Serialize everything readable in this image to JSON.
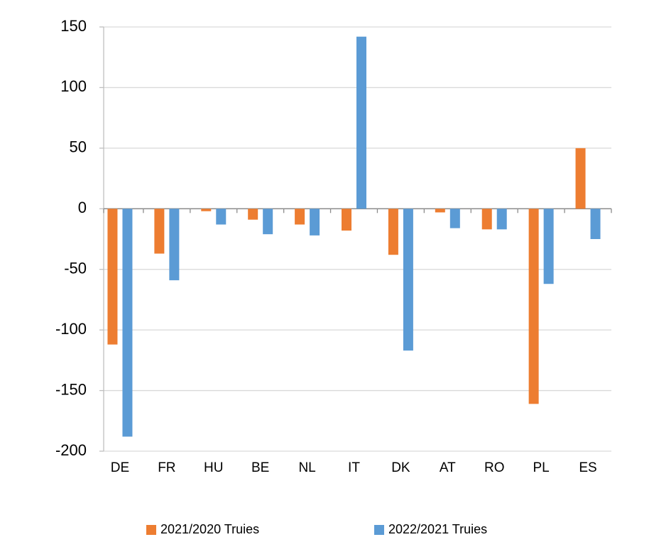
{
  "chart_data": {
    "type": "bar",
    "categories": [
      "DE",
      "FR",
      "HU",
      "BE",
      "NL",
      "IT",
      "DK",
      "AT",
      "RO",
      "PL",
      "ES"
    ],
    "series": [
      {
        "name": "2021/2020 Truies",
        "color": "#ed7d31",
        "values": [
          -112,
          -37,
          -2,
          -9,
          -13,
          -18,
          -38,
          -3,
          -17,
          -161,
          50
        ]
      },
      {
        "name": "2022/2021 Truies",
        "color": "#5b9bd5",
        "values": [
          -188,
          -59,
          -13,
          -21,
          -22,
          142,
          -117,
          -16,
          -17,
          -62,
          -25
        ]
      }
    ],
    "ylim": [
      -200,
      150
    ],
    "yticks": [
      -200,
      -150,
      -100,
      -50,
      0,
      50,
      100,
      150
    ],
    "grid": true,
    "legend": "bottom"
  }
}
